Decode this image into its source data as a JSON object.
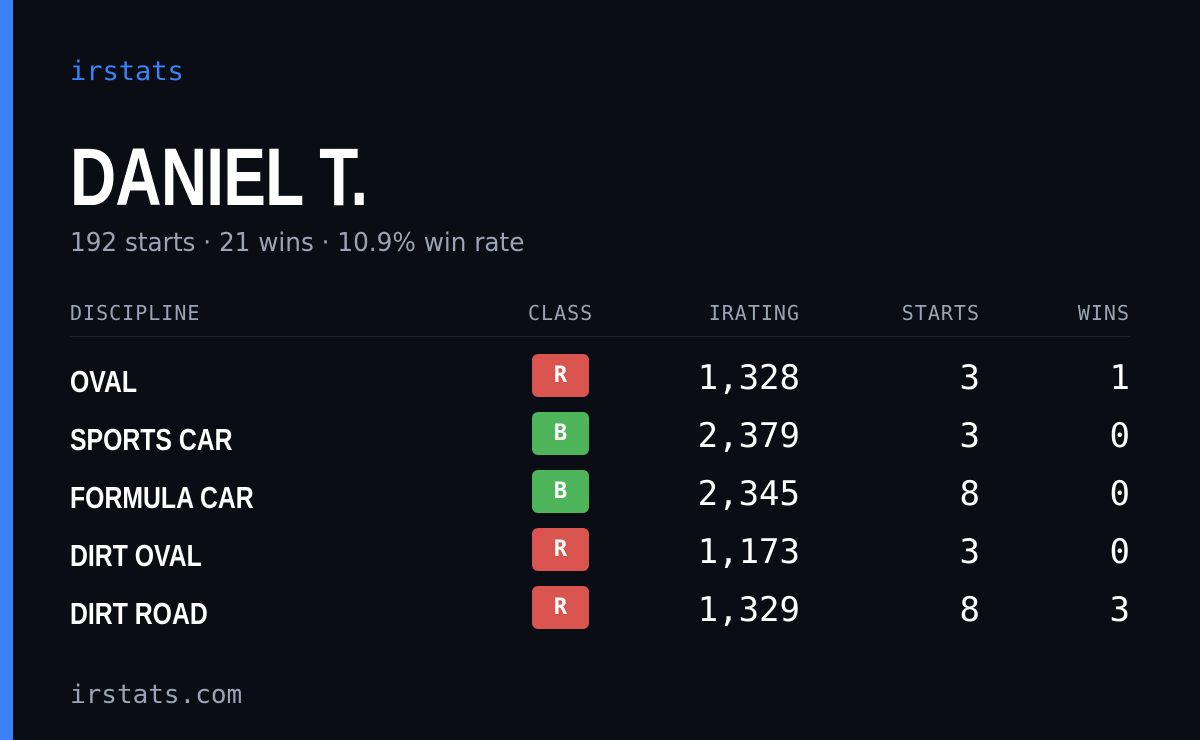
{
  "brand": "irstats",
  "driver_name": "DANIEL T.",
  "summary": "192 starts · 21 wins · 10.9% win rate",
  "colors": {
    "accent": "#3b82f6",
    "background": "#0a0d14",
    "class_R": "#d9534f",
    "class_B": "#4fb55b"
  },
  "table": {
    "headers": {
      "discipline": "DISCIPLINE",
      "class": "CLASS",
      "irating": "IRATING",
      "starts": "STARTS",
      "wins": "WINS"
    },
    "rows": [
      {
        "discipline": "OVAL",
        "class": "R",
        "irating": "1,328",
        "starts": "3",
        "wins": "1"
      },
      {
        "discipline": "SPORTS CAR",
        "class": "B",
        "irating": "2,379",
        "starts": "3",
        "wins": "0"
      },
      {
        "discipline": "FORMULA CAR",
        "class": "B",
        "irating": "2,345",
        "starts": "8",
        "wins": "0"
      },
      {
        "discipline": "DIRT OVAL",
        "class": "R",
        "irating": "1,173",
        "starts": "3",
        "wins": "0"
      },
      {
        "discipline": "DIRT ROAD",
        "class": "R",
        "irating": "1,329",
        "starts": "8",
        "wins": "3"
      }
    ]
  },
  "footer": "irstats.com"
}
